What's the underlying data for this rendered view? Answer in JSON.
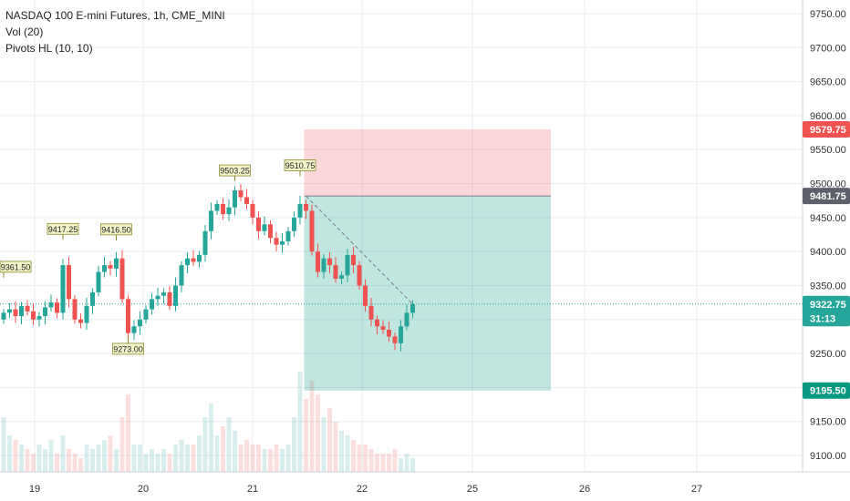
{
  "legend": {
    "symbol": "NASDAQ 100 E-mini Futures, 1h, CME_MINI",
    "vol": "Vol (20)",
    "pivots": "Pivots HL (10, 10)"
  },
  "chart_data": {
    "type": "candlestick",
    "y_ticks": [
      "9750.00",
      "9700.00",
      "9650.00",
      "9600.00",
      "9550.00",
      "9500.00",
      "9450.00",
      "9400.00",
      "9350.00",
      "9300.00",
      "9250.00",
      "9200.00",
      "9150.00",
      "9100.00"
    ],
    "y_tick_values": [
      9750,
      9700,
      9650,
      9600,
      9550,
      9500,
      9450,
      9400,
      9350,
      9300,
      9250,
      9200,
      9150,
      9100
    ],
    "x_ticks": [
      "19",
      "20",
      "21",
      "22",
      "25",
      "26",
      "27"
    ],
    "price_labels": [
      {
        "text": "9579.75",
        "value": 9579.75,
        "color": "#ef5350"
      },
      {
        "text": "9481.75",
        "value": 9481.75,
        "color": "#5d606b"
      },
      {
        "text": "9322.75",
        "value": 9322.75,
        "color": "#26a69a"
      },
      {
        "text": "31:13",
        "value": 9302.0,
        "color": "#26a69a"
      },
      {
        "text": "9195.50",
        "value": 9195.5,
        "color": "#089981"
      }
    ],
    "pivot_labels": [
      {
        "text": "9361.50",
        "index": 0,
        "value": 9361.5,
        "type": "high"
      },
      {
        "text": "9417.25",
        "index": 10,
        "value": 9417.25,
        "type": "high"
      },
      {
        "text": "9416.50",
        "index": 19,
        "value": 9416.5,
        "type": "high"
      },
      {
        "text": "9273.00",
        "index": 21,
        "value": 9273.0,
        "type": "low"
      },
      {
        "text": "9503.25",
        "index": 39,
        "value": 9503.25,
        "type": "high"
      },
      {
        "text": "9510.75",
        "index": 50,
        "value": 9510.75,
        "type": "high"
      }
    ],
    "position": {
      "type": "short",
      "entry": 9481.75,
      "stop": 9579.75,
      "target": 9195.5,
      "start_index": 51,
      "end_index": 90
    },
    "last_price": 9322.75,
    "closes": [
      9310,
      9315,
      9305,
      9320,
      9312,
      9300,
      9305,
      9318,
      9325,
      9310,
      9380,
      9330,
      9300,
      9295,
      9320,
      9340,
      9370,
      9380,
      9375,
      9390,
      9330,
      9280,
      9290,
      9300,
      9315,
      9330,
      9335,
      9340,
      9320,
      9350,
      9380,
      9390,
      9385,
      9395,
      9430,
      9460,
      9470,
      9455,
      9465,
      9490,
      9480,
      9470,
      9450,
      9430,
      9440,
      9420,
      9410,
      9415,
      9430,
      9450,
      9470,
      9460,
      9400,
      9370,
      9390,
      9380,
      9360,
      9365,
      9395,
      9380,
      9350,
      9320,
      9300,
      9290,
      9285,
      9275,
      9265,
      9290,
      9310,
      9322.75
    ],
    "volumes": [
      60,
      40,
      35,
      30,
      25,
      20,
      30,
      25,
      35,
      20,
      40,
      25,
      20,
      15,
      30,
      25,
      30,
      35,
      40,
      25,
      60,
      85,
      30,
      30,
      20,
      25,
      20,
      25,
      20,
      30,
      35,
      30,
      30,
      40,
      60,
      75,
      40,
      50,
      60,
      45,
      30,
      35,
      30,
      30,
      25,
      25,
      30,
      25,
      30,
      60,
      110,
      80,
      100,
      85,
      60,
      70,
      55,
      45,
      40,
      35,
      30,
      30,
      25,
      20,
      20,
      20,
      25,
      15,
      20,
      15
    ]
  }
}
